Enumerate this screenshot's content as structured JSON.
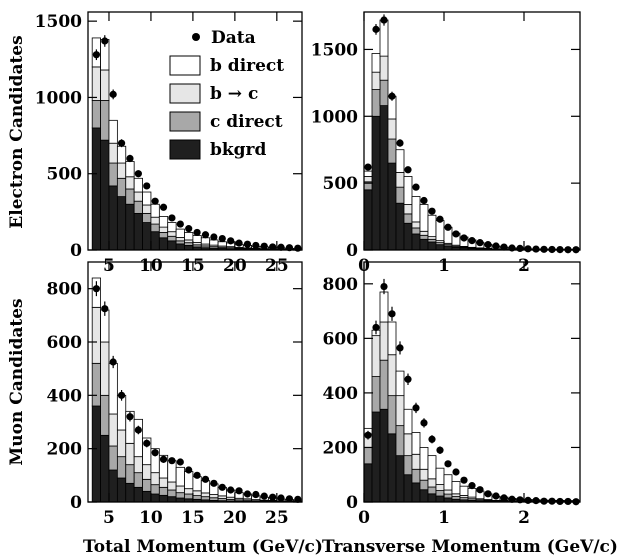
{
  "figure": {
    "row_labels": [
      "Electron Candidates",
      "Muon Candidates"
    ],
    "col_labels": [
      "Total Momentum (GeV/c)",
      "Transverse Momentum (GeV/c)"
    ]
  },
  "legend": {
    "data_label": "Data",
    "entries": [
      {
        "label": "b direct",
        "color": "#ffffff"
      },
      {
        "label": "b → c",
        "color": "#e6e6e6"
      },
      {
        "label": "c direct",
        "color": "#a8a8a8"
      },
      {
        "label": "bkgrd",
        "color": "#1f1f1f"
      }
    ]
  },
  "chart_data": [
    {
      "type": "bar",
      "panel": "electron-total-momentum",
      "xlim": [
        2.5,
        28
      ],
      "ylim": [
        0,
        1560
      ],
      "xticks": [
        5,
        10,
        15,
        20,
        25
      ],
      "yticks": [
        0,
        500,
        1000,
        1500
      ],
      "bin_edges": [
        3,
        4,
        5,
        6,
        7,
        8,
        9,
        10,
        11,
        12,
        13,
        14,
        15,
        16,
        17,
        18,
        19,
        20,
        21,
        22,
        23,
        24,
        25,
        26,
        27,
        28
      ],
      "series": [
        {
          "name": "bkgrd",
          "values": [
            800,
            720,
            420,
            350,
            300,
            240,
            180,
            120,
            80,
            60,
            40,
            30,
            20,
            15,
            12,
            10,
            8,
            6,
            5,
            4,
            3,
            2,
            2,
            1,
            1
          ]
        },
        {
          "name": "c direct",
          "values": [
            180,
            260,
            150,
            120,
            100,
            80,
            60,
            50,
            35,
            30,
            20,
            18,
            14,
            12,
            10,
            8,
            7,
            5,
            4,
            3,
            3,
            2,
            2,
            1,
            1
          ]
        },
        {
          "name": "b → c",
          "values": [
            220,
            200,
            130,
            100,
            80,
            60,
            55,
            45,
            35,
            30,
            22,
            18,
            15,
            12,
            10,
            8,
            7,
            6,
            5,
            4,
            3,
            3,
            2,
            2,
            1
          ]
        },
        {
          "name": "b direct",
          "values": [
            190,
            200,
            150,
            110,
            100,
            90,
            85,
            85,
            70,
            60,
            55,
            49,
            46,
            41,
            34,
            28,
            24,
            20,
            16,
            13,
            12,
            9,
            8,
            7,
            6
          ]
        }
      ],
      "data_points": {
        "x": [
          3.5,
          4.5,
          5.5,
          6.5,
          7.5,
          8.5,
          9.5,
          10.5,
          11.5,
          12.5,
          13.5,
          14.5,
          15.5,
          16.5,
          17.5,
          18.5,
          19.5,
          20.5,
          21.5,
          22.5,
          23.5,
          24.5,
          25.5,
          26.5,
          27.5
        ],
        "y": [
          1280,
          1370,
          1020,
          700,
          600,
          500,
          420,
          320,
          280,
          210,
          170,
          140,
          115,
          100,
          85,
          75,
          60,
          45,
          38,
          30,
          25,
          20,
          18,
          15,
          12
        ],
        "err": [
          35,
          38,
          32,
          26,
          24,
          22,
          20,
          18,
          17,
          15,
          13,
          12,
          11,
          10,
          9,
          9,
          8,
          7,
          6,
          6,
          5,
          5,
          4,
          4,
          4
        ]
      }
    },
    {
      "type": "bar",
      "panel": "electron-transverse-momentum",
      "xlim": [
        0,
        2.7
      ],
      "ylim": [
        0,
        1780
      ],
      "xticks": [
        0,
        1,
        2
      ],
      "yticks": [
        0,
        500,
        1000,
        1500
      ],
      "bin_edges": [
        0,
        0.1,
        0.2,
        0.3,
        0.4,
        0.5,
        0.6,
        0.7,
        0.8,
        0.9,
        1.0,
        1.1,
        1.2,
        1.3,
        1.4,
        1.5,
        1.6,
        1.7,
        1.8,
        1.9,
        2.0,
        2.1,
        2.2,
        2.3,
        2.4,
        2.5,
        2.6,
        2.7
      ],
      "series": [
        {
          "name": "bkgrd",
          "values": [
            450,
            1000,
            1080,
            650,
            350,
            200,
            120,
            80,
            60,
            40,
            30,
            20,
            15,
            10,
            8,
            6,
            4,
            3,
            2,
            2,
            1,
            1,
            1,
            1,
            1,
            1,
            1
          ]
        },
        {
          "name": "c direct",
          "values": [
            60,
            200,
            190,
            180,
            120,
            70,
            45,
            30,
            20,
            15,
            10,
            8,
            6,
            5,
            4,
            3,
            2,
            2,
            1,
            1,
            1,
            1,
            1,
            1,
            1,
            1,
            1
          ]
        },
        {
          "name": "b → c",
          "values": [
            40,
            130,
            180,
            150,
            110,
            70,
            45,
            30,
            20,
            15,
            10,
            8,
            6,
            5,
            4,
            3,
            2,
            2,
            1,
            1,
            1,
            1,
            1,
            1,
            1,
            1,
            1
          ]
        },
        {
          "name": "b direct",
          "values": [
            40,
            140,
            270,
            170,
            170,
            210,
            190,
            200,
            160,
            150,
            120,
            90,
            70,
            55,
            40,
            30,
            22,
            15,
            12,
            8,
            6,
            5,
            4,
            3,
            3,
            2,
            2
          ]
        }
      ],
      "data_points": {
        "x": [
          0.05,
          0.15,
          0.25,
          0.35,
          0.45,
          0.55,
          0.65,
          0.75,
          0.85,
          0.95,
          1.05,
          1.15,
          1.25,
          1.35,
          1.45,
          1.55,
          1.65,
          1.75,
          1.85,
          1.95,
          2.05,
          2.15,
          2.25,
          2.35,
          2.45,
          2.55,
          2.65
        ],
        "y": [
          620,
          1650,
          1720,
          1150,
          800,
          600,
          470,
          370,
          290,
          230,
          170,
          120,
          90,
          70,
          55,
          40,
          30,
          22,
          15,
          12,
          9,
          7,
          5,
          4,
          3,
          2,
          2
        ],
        "err": [
          25,
          40,
          42,
          34,
          28,
          24,
          22,
          19,
          17,
          15,
          13,
          11,
          10,
          8,
          7,
          6,
          5,
          5,
          4,
          3,
          3,
          3,
          2,
          2,
          2,
          1,
          1
        ]
      }
    },
    {
      "type": "bar",
      "panel": "muon-total-momentum",
      "xlim": [
        2.5,
        28
      ],
      "ylim": [
        0,
        900
      ],
      "xticks": [
        5,
        10,
        15,
        20,
        25
      ],
      "yticks": [
        0,
        200,
        400,
        600,
        800
      ],
      "bin_edges": [
        3,
        4,
        5,
        6,
        7,
        8,
        9,
        10,
        11,
        12,
        13,
        14,
        15,
        16,
        17,
        18,
        19,
        20,
        21,
        22,
        23,
        24,
        25,
        26,
        27,
        28
      ],
      "series": [
        {
          "name": "bkgrd",
          "values": [
            360,
            250,
            120,
            90,
            70,
            55,
            40,
            30,
            25,
            20,
            15,
            12,
            10,
            8,
            6,
            5,
            4,
            3,
            3,
            2,
            2,
            1,
            1,
            1,
            1
          ]
        },
        {
          "name": "c direct",
          "values": [
            160,
            150,
            90,
            80,
            70,
            55,
            45,
            35,
            30,
            25,
            20,
            18,
            14,
            12,
            10,
            8,
            6,
            5,
            4,
            3,
            2,
            2,
            1,
            1,
            1
          ]
        },
        {
          "name": "b → c",
          "values": [
            210,
            200,
            120,
            100,
            80,
            60,
            55,
            45,
            35,
            30,
            25,
            20,
            18,
            14,
            12,
            10,
            8,
            6,
            5,
            4,
            3,
            3,
            2,
            2,
            1
          ]
        },
        {
          "name": "b direct",
          "values": [
            110,
            120,
            190,
            130,
            120,
            140,
            100,
            90,
            85,
            80,
            70,
            64,
            53,
            46,
            40,
            32,
            27,
            21,
            18,
            14,
            11,
            9,
            7,
            5,
            4
          ]
        }
      ],
      "data_points": {
        "x": [
          3.5,
          4.5,
          5.5,
          6.5,
          7.5,
          8.5,
          9.5,
          10.5,
          11.5,
          12.5,
          13.5,
          14.5,
          15.5,
          16.5,
          17.5,
          18.5,
          19.5,
          20.5,
          21.5,
          22.5,
          23.5,
          24.5,
          25.5,
          26.5,
          27.5
        ],
        "y": [
          800,
          725,
          525,
          400,
          320,
          270,
          220,
          185,
          160,
          155,
          150,
          120,
          100,
          85,
          70,
          55,
          45,
          42,
          30,
          28,
          22,
          18,
          15,
          12,
          10
        ],
        "err": [
          28,
          27,
          23,
          20,
          18,
          16,
          15,
          14,
          13,
          12,
          12,
          11,
          10,
          9,
          8,
          7,
          7,
          6,
          5,
          5,
          5,
          4,
          4,
          3,
          3
        ]
      }
    },
    {
      "type": "bar",
      "panel": "muon-transverse-momentum",
      "xlim": [
        0,
        2.7
      ],
      "ylim": [
        0,
        880
      ],
      "xticks": [
        0,
        1,
        2
      ],
      "yticks": [
        0,
        200,
        400,
        600,
        800
      ],
      "bin_edges": [
        0,
        0.1,
        0.2,
        0.3,
        0.4,
        0.5,
        0.6,
        0.7,
        0.8,
        0.9,
        1.0,
        1.1,
        1.2,
        1.3,
        1.4,
        1.5,
        1.6,
        1.7,
        1.8,
        1.9,
        2.0,
        2.1,
        2.2,
        2.3,
        2.4,
        2.5,
        2.6,
        2.7
      ],
      "series": [
        {
          "name": "bkgrd",
          "values": [
            140,
            330,
            340,
            250,
            170,
            100,
            70,
            45,
            30,
            22,
            15,
            10,
            8,
            6,
            4,
            3,
            2,
            2,
            1,
            1,
            1,
            1,
            1,
            1,
            1,
            1,
            1
          ]
        },
        {
          "name": "c direct",
          "values": [
            60,
            130,
            180,
            140,
            110,
            70,
            50,
            35,
            25,
            20,
            14,
            10,
            8,
            6,
            4,
            3,
            2,
            2,
            1,
            1,
            1,
            1,
            1,
            1,
            1,
            1,
            1
          ]
        },
        {
          "name": "b → c",
          "values": [
            50,
            150,
            140,
            150,
            110,
            80,
            55,
            40,
            30,
            22,
            15,
            10,
            8,
            6,
            4,
            3,
            2,
            2,
            1,
            1,
            1,
            1,
            1,
            1,
            1,
            1,
            1
          ]
        },
        {
          "name": "b direct",
          "values": [
            20,
            20,
            110,
            120,
            90,
            90,
            80,
            80,
            85,
            60,
            56,
            45,
            34,
            32,
            28,
            21,
            15,
            12,
            10,
            8,
            6,
            5,
            4,
            3,
            3,
            2,
            2
          ]
        }
      ],
      "data_points": {
        "x": [
          0.05,
          0.15,
          0.25,
          0.35,
          0.45,
          0.55,
          0.65,
          0.75,
          0.85,
          0.95,
          1.05,
          1.15,
          1.25,
          1.35,
          1.45,
          1.55,
          1.65,
          1.75,
          1.85,
          1.95,
          2.05,
          2.15,
          2.25,
          2.35,
          2.45,
          2.55,
          2.65
        ],
        "y": [
          245,
          640,
          790,
          690,
          565,
          450,
          345,
          290,
          230,
          190,
          140,
          110,
          80,
          60,
          45,
          30,
          22,
          15,
          10,
          8,
          6,
          5,
          3,
          3,
          2,
          2,
          1
        ],
        "err": [
          16,
          25,
          28,
          26,
          24,
          21,
          19,
          17,
          15,
          14,
          12,
          10,
          9,
          8,
          7,
          6,
          5,
          4,
          3,
          3,
          2,
          2,
          2,
          2,
          1,
          1,
          1
        ]
      }
    }
  ]
}
